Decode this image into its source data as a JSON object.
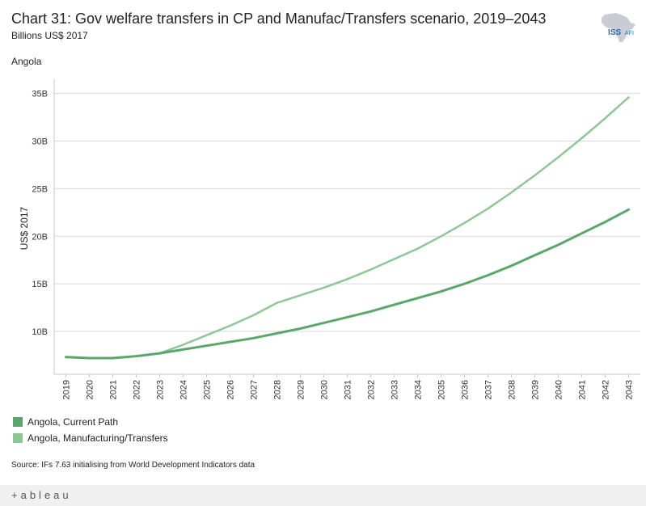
{
  "header": {
    "title": "Chart 31: Gov welfare transfers in CP and Manufac/Transfers scenario, 2019–2043",
    "subtitle": "Billions US$ 2017",
    "region": "Angola"
  },
  "logo": {
    "text": "ISS",
    "text2": "AFI",
    "icon": "africa-map-icon",
    "color": "#1f6fb5"
  },
  "legend": [
    {
      "label": "Angola,  Current Path",
      "color": "#59a86b"
    },
    {
      "label": "Angola,  Manufacturing/Transfers",
      "color": "#8cc896"
    }
  ],
  "source": "Source: IFs 7.63 initialising from World Development Indicators data",
  "footer": {
    "brand": "+ableau",
    "icon": "tableau-logo-icon"
  },
  "chart_data": {
    "type": "line",
    "title": "Chart 31: Gov welfare transfers in CP and Manufac/Transfers scenario, 2019–2043",
    "ylabel": "US$ 2017",
    "xlabel": "",
    "x": [
      "2019",
      "2020",
      "2021",
      "2022",
      "2023",
      "2024",
      "2025",
      "2026",
      "2027",
      "2028",
      "2029",
      "2030",
      "2031",
      "2032",
      "2033",
      "2034",
      "2035",
      "2036",
      "2037",
      "2038",
      "2039",
      "2040",
      "2041",
      "2042",
      "2043"
    ],
    "ylim": [
      5.5,
      36.5
    ],
    "yticks": [
      10,
      15,
      20,
      25,
      30,
      35
    ],
    "ytick_labels": [
      "10B",
      "15B",
      "20B",
      "25B",
      "30B",
      "35B"
    ],
    "grid": true,
    "series": [
      {
        "name": "Angola,  Current Path",
        "color": "#59a86b",
        "values": [
          7.3,
          7.2,
          7.2,
          7.4,
          7.7,
          8.1,
          8.5,
          8.9,
          9.3,
          9.8,
          10.3,
          10.9,
          11.5,
          12.1,
          12.8,
          13.5,
          14.2,
          15.0,
          15.9,
          16.9,
          18.0,
          19.1,
          20.3,
          21.5,
          22.8
        ],
        "width": 3
      },
      {
        "name": "Angola,  Manufacturing/Transfers",
        "color": "#8cc896",
        "values": [
          7.3,
          7.2,
          7.2,
          7.4,
          7.7,
          8.6,
          9.6,
          10.6,
          11.7,
          13.0,
          13.8,
          14.6,
          15.5,
          16.5,
          17.6,
          18.7,
          20.0,
          21.4,
          22.9,
          24.6,
          26.4,
          28.3,
          30.3,
          32.4,
          34.6
        ],
        "width": 2.5
      }
    ]
  }
}
